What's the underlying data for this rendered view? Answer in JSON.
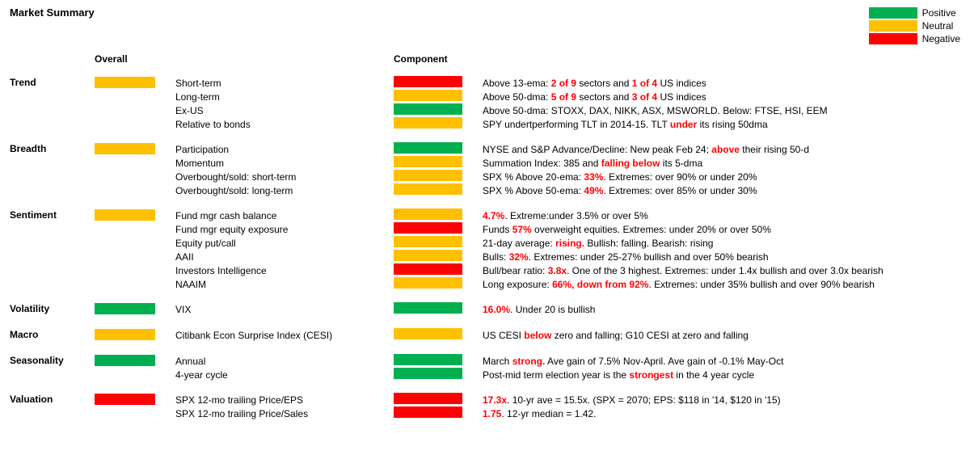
{
  "title": "Market Summary",
  "colors": {
    "positive": "#00b050",
    "neutral": "#ffc000",
    "negative": "#ff0000",
    "text_emph": "#ff0000",
    "text": "#000000",
    "bg": "#ffffff"
  },
  "legend": [
    {
      "label": "Positive",
      "color": "positive"
    },
    {
      "label": "Neutral",
      "color": "neutral"
    },
    {
      "label": "Negative",
      "color": "negative"
    }
  ],
  "headers": {
    "overall": "Overall",
    "component": "Component"
  },
  "sections": [
    {
      "name": "Trend",
      "overall": "neutral",
      "rows": [
        {
          "label": "Short-term",
          "swatch": "negative",
          "desc": [
            {
              "t": "Above 13-ema: "
            },
            {
              "t": "2 of 9",
              "e": 1
            },
            {
              "t": " sectors and "
            },
            {
              "t": "1 of 4",
              "e": 1
            },
            {
              "t": " US indices"
            }
          ]
        },
        {
          "label": "Long-term",
          "swatch": "neutral",
          "desc": [
            {
              "t": "Above 50-dma: "
            },
            {
              "t": "5 of 9",
              "e": 1
            },
            {
              "t": " sectors and "
            },
            {
              "t": "3 of 4",
              "e": 1
            },
            {
              "t": " US indices"
            }
          ]
        },
        {
          "label": "Ex-US",
          "swatch": "positive",
          "desc": [
            {
              "t": "Above 50-dma:  STOXX, DAX, NIKK, ASX, MSWORLD.  Below: FTSE, HSI, EEM"
            }
          ]
        },
        {
          "label": "Relative to bonds",
          "swatch": "neutral",
          "desc": [
            {
              "t": "SPY undertperforming TLT in 2014-15. TLT "
            },
            {
              "t": "under",
              "e": 1
            },
            {
              "t": " its rising 50dma"
            }
          ]
        }
      ]
    },
    {
      "name": "Breadth",
      "overall": "neutral",
      "rows": [
        {
          "label": "Participation",
          "swatch": "positive",
          "desc": [
            {
              "t": "NYSE and S&P Advance/Decline: New peak Feb 24; "
            },
            {
              "t": "above",
              "e": 1
            },
            {
              "t": " their rising 50-d"
            }
          ]
        },
        {
          "label": "Momentum",
          "swatch": "neutral",
          "desc": [
            {
              "t": "Summation Index: 385 and "
            },
            {
              "t": "falling below",
              "e": 1
            },
            {
              "t": " its 5-dma"
            }
          ]
        },
        {
          "label": "Overbought/sold: short-term",
          "swatch": "neutral",
          "desc": [
            {
              "t": "SPX % Above 20-ema: "
            },
            {
              "t": "33%",
              "e": 1
            },
            {
              "t": ". Extremes: over 90% or under 20%"
            }
          ]
        },
        {
          "label": "Overbought/sold: long-term",
          "swatch": "neutral",
          "desc": [
            {
              "t": "SPX % Above 50-ema: "
            },
            {
              "t": "49%",
              "e": 1
            },
            {
              "t": ". Extremes: over 85% or under 30%"
            }
          ]
        }
      ]
    },
    {
      "name": "Sentiment",
      "overall": "neutral",
      "rows": [
        {
          "label": "Fund mgr cash balance",
          "swatch": "neutral",
          "desc": [
            {
              "t": "4.7%",
              "e": 1
            },
            {
              "t": ". Extreme:under 3.5% or over 5%"
            }
          ]
        },
        {
          "label": "Fund mgr equity exposure",
          "swatch": "negative",
          "desc": [
            {
              "t": "Funds "
            },
            {
              "t": "57%",
              "e": 1
            },
            {
              "t": " overweight equities. Extremes: under 20% or over 50%"
            }
          ]
        },
        {
          "label": "Equity put/call",
          "swatch": "neutral",
          "desc": [
            {
              "t": "21-day average: "
            },
            {
              "t": "rising.",
              "e": 1
            },
            {
              "t": " Bullish: falling. Bearish: rising"
            }
          ]
        },
        {
          "label": "AAII",
          "swatch": "neutral",
          "desc": [
            {
              "t": "Bulls: "
            },
            {
              "t": "32%",
              "e": 1
            },
            {
              "t": ". Extremes: under 25-27% bullish and over 50% bearish"
            }
          ]
        },
        {
          "label": "Investors Intelligence",
          "swatch": "negative",
          "desc": [
            {
              "t": "Bull/bear ratio: "
            },
            {
              "t": "3.8x",
              "e": 1
            },
            {
              "t": ". One of the 3 highest. Extremes: under 1.4x bullish and over 3.0x bearish"
            }
          ]
        },
        {
          "label": "NAAIM",
          "swatch": "neutral",
          "desc": [
            {
              "t": "Long exposure: "
            },
            {
              "t": "66%, down from 92%",
              "e": 1
            },
            {
              "t": ". Extremes: under 35% bullish and over 90% bearish"
            }
          ]
        }
      ]
    },
    {
      "name": "Volatility",
      "overall": "positive",
      "rows": [
        {
          "label": "VIX",
          "swatch": "positive",
          "desc": [
            {
              "t": "16.0%",
              "e": 1
            },
            {
              "t": ". Under 20 is bullish"
            }
          ]
        }
      ]
    },
    {
      "name": "Macro",
      "overall": "neutral",
      "rows": [
        {
          "label": "Citibank Econ Surprise Index (CESI)",
          "swatch": "neutral",
          "desc": [
            {
              "t": "US CESI "
            },
            {
              "t": "below",
              "e": 1
            },
            {
              "t": " zero and falling;  G10 CESI at zero and falling"
            }
          ]
        }
      ]
    },
    {
      "name": "Seasonality",
      "overall": "positive",
      "rows": [
        {
          "label": "Annual",
          "swatch": "positive",
          "desc": [
            {
              "t": "March "
            },
            {
              "t": "strong.",
              "e": 1
            },
            {
              "t": " Ave gain of 7.5% Nov-April. Ave gain of -0.1% May-Oct"
            }
          ]
        },
        {
          "label": "4-year cycle",
          "swatch": "positive",
          "desc": [
            {
              "t": "Post-mid term election year is the "
            },
            {
              "t": "strongest",
              "e": 1
            },
            {
              "t": " in the 4 year cycle"
            }
          ]
        }
      ]
    },
    {
      "name": "Valuation",
      "overall": "negative",
      "rows": [
        {
          "label": "SPX 12-mo trailing Price/EPS",
          "swatch": "negative",
          "desc": [
            {
              "t": "17.3x",
              "e": 1
            },
            {
              "t": ". 10-yr ave = 15.5x.  (SPX = 2070; EPS: $118 in '14, $120 in '15)"
            }
          ]
        },
        {
          "label": "SPX 12-mo trailing Price/Sales",
          "swatch": "negative",
          "desc": [
            {
              "t": "1.75",
              "e": 1
            },
            {
              "t": ". 12-yr median = 1.42."
            }
          ]
        }
      ]
    }
  ]
}
